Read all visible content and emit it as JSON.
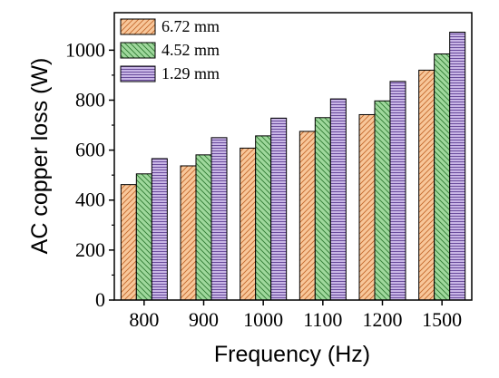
{
  "chart_data": {
    "type": "bar",
    "categories": [
      "800",
      "900",
      "1000",
      "1100",
      "1200",
      "1500"
    ],
    "series": [
      {
        "name": "6.72 mm",
        "values": [
          462,
          537,
          608,
          675,
          742,
          920
        ],
        "fill": "#f8c79a",
        "stroke_color": "#c46a2e",
        "pattern": "diag-right"
      },
      {
        "name": "4.52 mm",
        "values": [
          505,
          581,
          657,
          730,
          797,
          985
        ],
        "fill": "#9fd89c",
        "stroke_color": "#2f7a32",
        "pattern": "diag-left"
      },
      {
        "name": "1.29 mm",
        "values": [
          566,
          650,
          728,
          805,
          875,
          1072
        ],
        "fill": "#c9b6e6",
        "stroke_color": "#6a4c9c",
        "pattern": "horizontal"
      }
    ],
    "xlabel": "Frequency (Hz)",
    "ylabel": "AC copper loss (W)",
    "ylim": [
      0,
      1150
    ],
    "yticks": [
      0,
      200,
      400,
      600,
      800,
      1000
    ],
    "grid": false,
    "legend_position": "top-left"
  }
}
